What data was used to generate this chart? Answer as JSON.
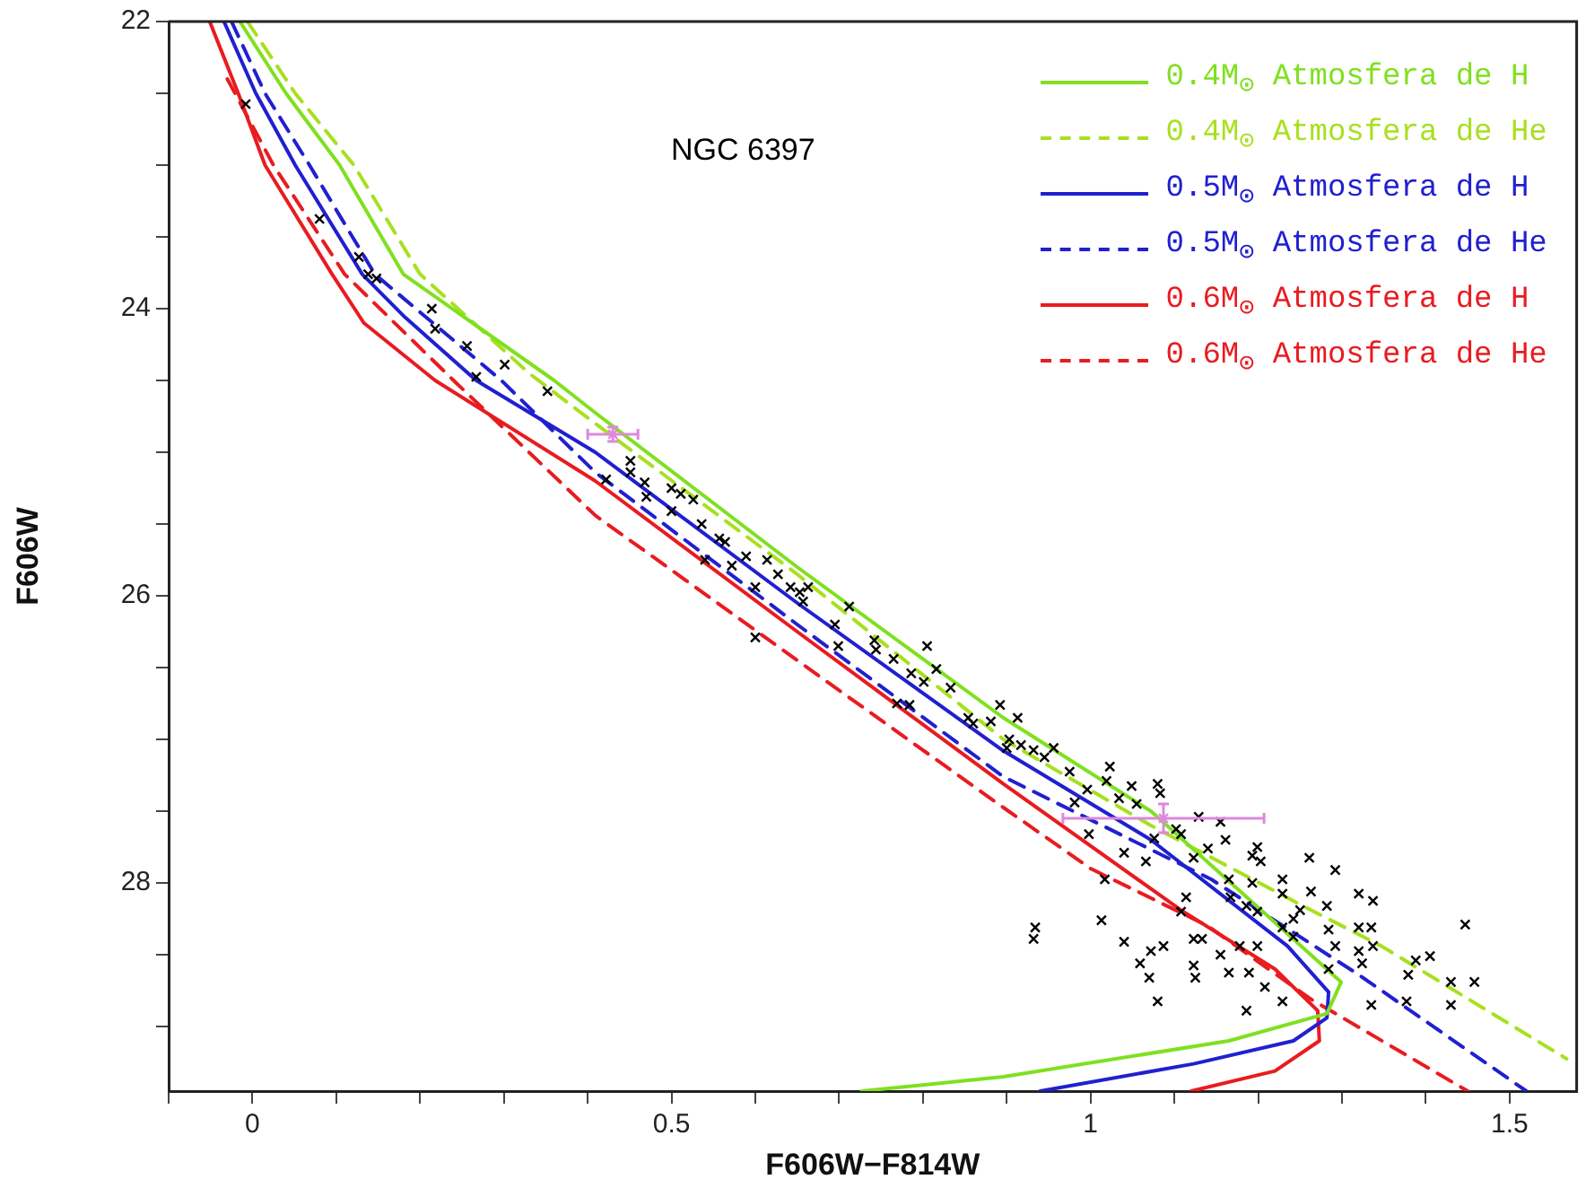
{
  "chart_data": {
    "type": "line",
    "xlabel": "F606W−F814W",
    "ylabel": "F606W",
    "annotations": [
      "NGC 6397"
    ],
    "legend": "top right",
    "xlim": [
      -0.1,
      1.58
    ],
    "ylim": [
      29.45,
      22
    ],
    "xticks": [
      {
        "value": -0.1,
        "label": null
      },
      0,
      {
        "value": 0.1,
        "label": null
      },
      {
        "value": 0.2,
        "label": null
      },
      {
        "value": 0.3,
        "label": null
      },
      {
        "value": 0.4,
        "label": null
      },
      0.5,
      {
        "value": 0.6,
        "label": null
      },
      {
        "value": 0.7,
        "label": null
      },
      {
        "value": 0.8,
        "label": null
      },
      {
        "value": 0.9,
        "label": null
      },
      1,
      {
        "value": 1.1,
        "label": null
      },
      {
        "value": 1.2,
        "label": null
      },
      {
        "value": 1.3,
        "label": null
      },
      {
        "value": 1.4,
        "label": null
      },
      1.5
    ],
    "yticks": [
      22,
      {
        "value": 22.5,
        "label": null
      },
      {
        "value": 23,
        "label": null
      },
      {
        "value": 23.5,
        "label": null
      },
      24,
      {
        "value": 24.5,
        "label": null
      },
      {
        "value": 25,
        "label": null
      },
      {
        "value": 25.5,
        "label": null
      },
      26,
      {
        "value": 26.5,
        "label": null
      },
      {
        "value": 27,
        "label": null
      },
      {
        "value": 27.5,
        "label": null
      },
      28,
      {
        "value": 28.5,
        "label": null
      },
      {
        "value": 29,
        "label": null
      }
    ],
    "series": [
      {
        "type": "scatter",
        "color": "#000000",
        "marker": "cross",
        "x": [
          -0.008,
          0.08,
          0.127,
          0.138,
          0.148,
          0.214,
          0.218,
          0.256,
          0.267,
          0.301,
          0.352,
          0.422,
          0.451,
          0.451,
          0.468,
          0.47,
          0.5,
          0.511,
          0.526,
          0.5,
          0.536,
          0.557,
          0.564,
          0.54,
          0.589,
          0.614,
          0.572,
          0.627,
          0.6,
          0.642,
          0.653,
          0.663,
          0.657,
          0.712,
          0.6,
          0.695,
          0.699,
          0.742,
          0.744,
          0.805,
          0.765,
          0.786,
          0.816,
          0.801,
          0.833,
          0.769,
          0.784,
          0.892,
          0.913,
          0.854,
          0.86,
          0.881,
          0.903,
          0.917,
          0.9,
          0.932,
          0.956,
          0.945,
          1.023,
          0.975,
          1.08,
          1.083,
          0.996,
          1.019,
          1.049,
          1.034,
          0.981,
          1.055,
          1.129,
          1.155,
          0.998,
          1.102,
          1.108,
          1.161,
          1.199,
          1.076,
          1.14,
          1.04,
          1.193,
          1.066,
          1.123,
          1.203,
          1.261,
          1.292,
          1.017,
          1.165,
          1.193,
          1.229,
          1.229,
          1.263,
          1.32,
          1.337,
          1.114,
          1.167,
          1.25,
          1.282,
          1.199,
          1.186,
          1.108,
          1.229,
          1.242,
          1.284,
          1.32,
          1.335,
          1.447,
          1.013,
          0.934,
          0.932,
          1.242,
          1.292,
          1.32,
          1.337,
          1.04,
          1.072,
          1.087,
          1.123,
          1.133,
          1.178,
          1.199,
          1.059,
          1.155,
          1.123,
          1.165,
          1.189,
          1.125,
          1.07,
          1.208,
          1.284,
          1.324,
          1.388,
          1.405,
          1.379,
          1.43,
          1.458,
          1.335,
          1.377,
          1.43,
          1.08,
          1.186,
          1.229
        ],
        "values": [
          22.575,
          23.375,
          23.64,
          23.76,
          23.79,
          24.0,
          24.14,
          24.26,
          24.475,
          24.39,
          24.575,
          25.19,
          25.06,
          25.14,
          25.21,
          25.31,
          25.25,
          25.29,
          25.33,
          25.41,
          25.5,
          25.6,
          25.625,
          25.75,
          25.725,
          25.75,
          25.79,
          25.85,
          25.94,
          25.94,
          25.975,
          25.94,
          26.04,
          26.075,
          26.29,
          26.2,
          26.35,
          26.31,
          26.375,
          26.35,
          26.44,
          26.54,
          26.51,
          26.6,
          26.64,
          26.75,
          26.76,
          26.76,
          26.85,
          26.85,
          26.89,
          26.875,
          27.0,
          27.04,
          27.06,
          27.075,
          27.06,
          27.125,
          27.19,
          27.225,
          27.31,
          27.375,
          27.35,
          27.29,
          27.325,
          27.41,
          27.44,
          27.45,
          27.54,
          27.575,
          27.66,
          27.625,
          27.66,
          27.7,
          27.75,
          27.69,
          27.76,
          27.79,
          27.81,
          27.85,
          27.825,
          27.85,
          27.825,
          27.91,
          27.975,
          27.975,
          28.0,
          27.975,
          28.075,
          28.06,
          28.075,
          28.125,
          28.1,
          28.1,
          28.19,
          28.16,
          28.2,
          28.16,
          28.2,
          28.31,
          28.25,
          28.325,
          28.31,
          28.31,
          28.29,
          28.26,
          28.31,
          28.39,
          28.375,
          28.44,
          28.475,
          28.44,
          28.41,
          28.475,
          28.44,
          28.39,
          28.39,
          28.44,
          28.44,
          28.56,
          28.5,
          28.575,
          28.625,
          28.625,
          28.66,
          28.66,
          28.725,
          28.6,
          28.56,
          28.54,
          28.51,
          28.64,
          28.69,
          28.69,
          28.85,
          28.825,
          28.85,
          28.825,
          28.89,
          28.825
        ]
      },
      {
        "type": "scatter",
        "color": "#dd88dd",
        "marker": "cross",
        "x": [
          0.43,
          1.087
        ],
        "values": [
          24.875,
          27.55
        ],
        "xerrors": [
          0.03,
          0.12
        ],
        "errors": [
          0.05,
          0.1
        ]
      },
      {
        "name": "0.4M$_{⊙}$ Atmosfera de H",
        "color": "#80e020",
        "line_style": "solid",
        "marker": "none",
        "x": [
          -0.015,
          0.04,
          0.104,
          0.18,
          0.36,
          0.409,
          0.65,
          0.896,
          1.072,
          1.299,
          1.282,
          1.165,
          0.896,
          0.727
        ],
        "values": [
          22,
          22.5,
          23,
          23.76,
          24.5,
          24.725,
          25.8,
          26.85,
          27.5,
          28.69,
          28.91,
          29.1,
          29.35,
          29.45
        ]
      },
      {
        "name": "0.4M$_{⊙}$ Atmosfera de He",
        "color": "#a8e020",
        "line_style": "dashed",
        "marker": "none",
        "x": [
          -0.006,
          0.051,
          0.121,
          0.2,
          0.33,
          0.409,
          0.65,
          0.896,
          1.072,
          1.25,
          1.347,
          1.568
        ],
        "values": [
          22,
          22.5,
          23,
          23.76,
          24.45,
          24.8,
          25.85,
          27.0,
          27.6,
          28.15,
          28.44,
          29.225
        ]
      },
      {
        "name": "0.5M$_{⊙}$ Atmosfera de H",
        "color": "#2020d0",
        "line_style": "solid",
        "marker": "none",
        "x": [
          -0.034,
          0.004,
          0.051,
          0.131,
          0.182,
          0.267,
          0.409,
          0.65,
          0.896,
          1.072,
          1.235,
          1.284,
          1.282,
          1.242,
          1.123,
          0.94
        ],
        "values": [
          22,
          22.5,
          23,
          23.76,
          24.06,
          24.5,
          25.0,
          26.05,
          27.08,
          27.7,
          28.44,
          28.76,
          28.94,
          29.1,
          29.26,
          29.45
        ]
      },
      {
        "name": "0.5M$_{⊙}$ Atmosfera de He",
        "color": "#2020d0",
        "line_style": "dashed",
        "marker": "none",
        "x": [
          -0.025,
          0.015,
          0.068,
          0.146,
          0.297,
          0.409,
          0.65,
          0.896,
          1.144,
          1.32,
          1.52
        ],
        "values": [
          22,
          22.5,
          23,
          23.76,
          24.5,
          25.14,
          26.2,
          27.26,
          27.975,
          28.64,
          29.45
        ]
      },
      {
        "name": "0.6M$_{⊙}$ Atmosfera de H",
        "color": "#e81c20",
        "line_style": "solid",
        "marker": "none",
        "x": [
          -0.051,
          -0.017,
          0.015,
          0.095,
          0.133,
          0.218,
          0.409,
          0.65,
          0.896,
          1.108,
          1.22,
          1.271,
          1.273,
          1.22,
          1.12
        ],
        "values": [
          22,
          22.5,
          23,
          23.76,
          24.1,
          24.5,
          25.2,
          26.25,
          27.31,
          28.19,
          28.6,
          28.89,
          29.1,
          29.31,
          29.45
        ]
      },
      {
        "name": "0.6M$_{⊙}$ Atmosfera de He",
        "color": "#e81c20",
        "line_style": "dashed",
        "marker": "none",
        "x": [
          -0.03,
          0.025,
          0.11,
          0.24,
          0.409,
          0.65,
          0.896,
          1.0,
          1.14,
          1.263,
          1.45
        ],
        "values": [
          22.4,
          23,
          23.76,
          24.5,
          25.44,
          26.45,
          27.475,
          27.9,
          28.3,
          28.81,
          29.45
        ]
      }
    ]
  }
}
